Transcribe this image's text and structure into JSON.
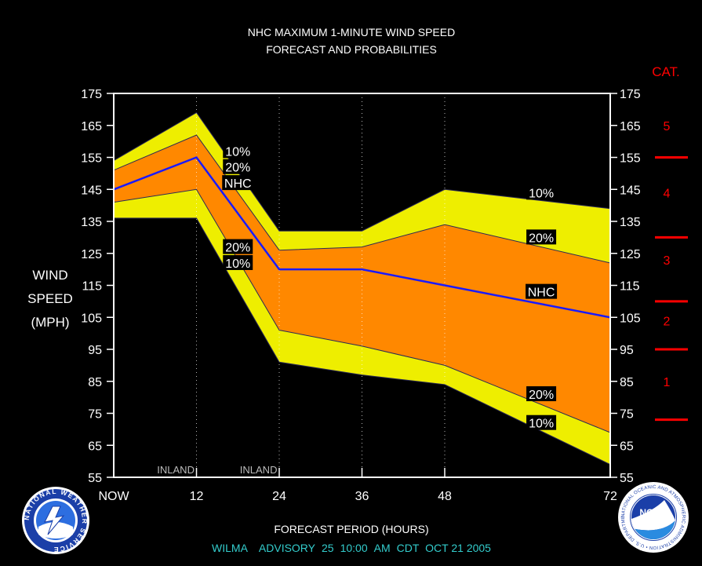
{
  "colors": {
    "background": "#000000",
    "frame": "#ffffff",
    "band_10pct": "#eeee00",
    "band_20pct": "#ff8800",
    "nhc_line": "#1a1aff",
    "category": "#ff0000",
    "footer": "#33cccc",
    "label_bg": "#000000"
  },
  "chart_data": {
    "type": "area",
    "title": "NHC MAXIMUM 1-MINUTE WIND SPEED",
    "subtitle": "FORECAST AND PROBABILITIES",
    "xlabel": "FORECAST PERIOD (HOURS)",
    "ylabel": [
      "WIND",
      "SPEED",
      "(MPH)"
    ],
    "x_ticks": [
      "NOW",
      "12",
      "24",
      "36",
      "48",
      "72"
    ],
    "x_tick_values": [
      0,
      12,
      24,
      36,
      48,
      72
    ],
    "xlim": [
      0,
      72
    ],
    "ylim": [
      55,
      175
    ],
    "y_ticks": [
      55,
      65,
      75,
      85,
      95,
      105,
      115,
      125,
      135,
      145,
      155,
      165,
      175
    ],
    "annotations": [
      {
        "text": "INLAND",
        "x": 9
      },
      {
        "text": "INLAND",
        "x": 21
      }
    ],
    "x": [
      0,
      12,
      24,
      36,
      48,
      72
    ],
    "series": {
      "upper_10": {
        "values": [
          154,
          169,
          132,
          132,
          145,
          139
        ]
      },
      "upper_20": {
        "values": [
          151,
          162,
          126,
          127,
          134,
          122
        ]
      },
      "nhc": {
        "values": [
          145,
          155,
          120,
          120,
          115,
          105
        ]
      },
      "lower_20": {
        "values": [
          141,
          145,
          101,
          96,
          90,
          69
        ]
      },
      "lower_10": {
        "values": [
          136,
          136,
          91,
          87,
          84,
          59
        ]
      }
    },
    "series_labels": [
      {
        "text": "10%",
        "x": 18,
        "y": 157
      },
      {
        "text": "20%",
        "x": 18,
        "y": 152
      },
      {
        "text": "NHC",
        "x": 18,
        "y": 147
      },
      {
        "text": "20%",
        "x": 18,
        "y": 127
      },
      {
        "text": "10%",
        "x": 18,
        "y": 122
      },
      {
        "text": "10%",
        "x": 62,
        "y": 144
      },
      {
        "text": "20%",
        "x": 62,
        "y": 130
      },
      {
        "text": "NHC",
        "x": 62,
        "y": 113
      },
      {
        "text": "20%",
        "x": 62,
        "y": 81
      },
      {
        "text": "10%",
        "x": 62,
        "y": 72
      }
    ],
    "category_scale": {
      "title": "CAT.",
      "labels": [
        {
          "text": "5",
          "y": 165
        },
        {
          "text": "4",
          "y": 144
        },
        {
          "text": "3",
          "y": 123
        },
        {
          "text": "2",
          "y": 104
        },
        {
          "text": "1",
          "y": 85
        }
      ],
      "boundaries": [
        155,
        130,
        110,
        95,
        73
      ]
    },
    "grid": "vertical dotted at forecast hours"
  },
  "footer": {
    "storm": "WILMA",
    "advisory_label": "ADVISORY",
    "advisory_number": "25",
    "time": "10:00",
    "ampm": "AM",
    "zone": "CDT",
    "date": "OCT 21 2005"
  },
  "logos": {
    "left": {
      "icon": "national-weather-service-logo",
      "text": "NATIONAL WEATHER SERVICE"
    },
    "right": {
      "icon": "noaa-logo",
      "text": "NOAA",
      "ring": "NATIONAL OCEANIC AND ATMOSPHERIC ADMINISTRATION • U.S. DEPARTMENT OF COMMERCE"
    }
  }
}
